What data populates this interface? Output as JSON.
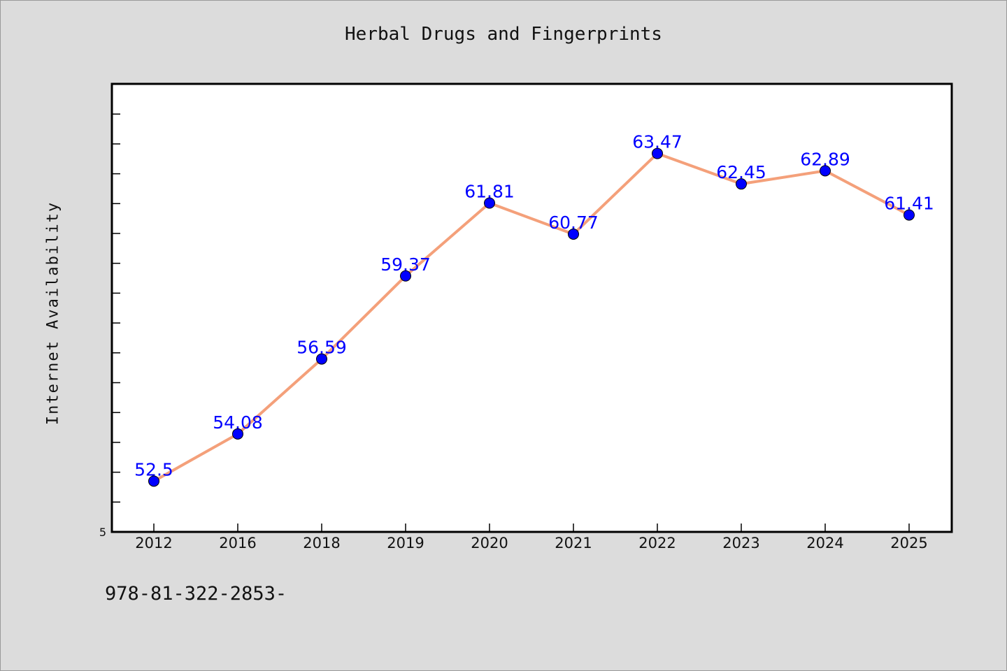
{
  "chart_data": {
    "type": "line",
    "title": "Herbal Drugs and Fingerprints",
    "xlabel": "",
    "ylabel": "Internet Availability",
    "categories": [
      "2012",
      "2016",
      "2018",
      "2019",
      "2020",
      "2021",
      "2022",
      "2023",
      "2024",
      "2025"
    ],
    "values": [
      52.5,
      54.08,
      56.59,
      59.37,
      61.81,
      60.77,
      63.47,
      62.45,
      62.89,
      61.41
    ],
    "value_labels": [
      "52.5",
      "54.08",
      "56.59",
      "59.37",
      "61.81",
      "60.77",
      "63.47",
      "62.45",
      "62.89",
      "61.41"
    ],
    "ylim": [
      50.8,
      65.8
    ],
    "y_tick_labels": [
      "5"
    ],
    "grid": false,
    "line_color": "#f4a07a",
    "marker_color": "#0000ff",
    "label_color": "#0000ff"
  },
  "footer": {
    "text": "978-81-322-2853-"
  }
}
